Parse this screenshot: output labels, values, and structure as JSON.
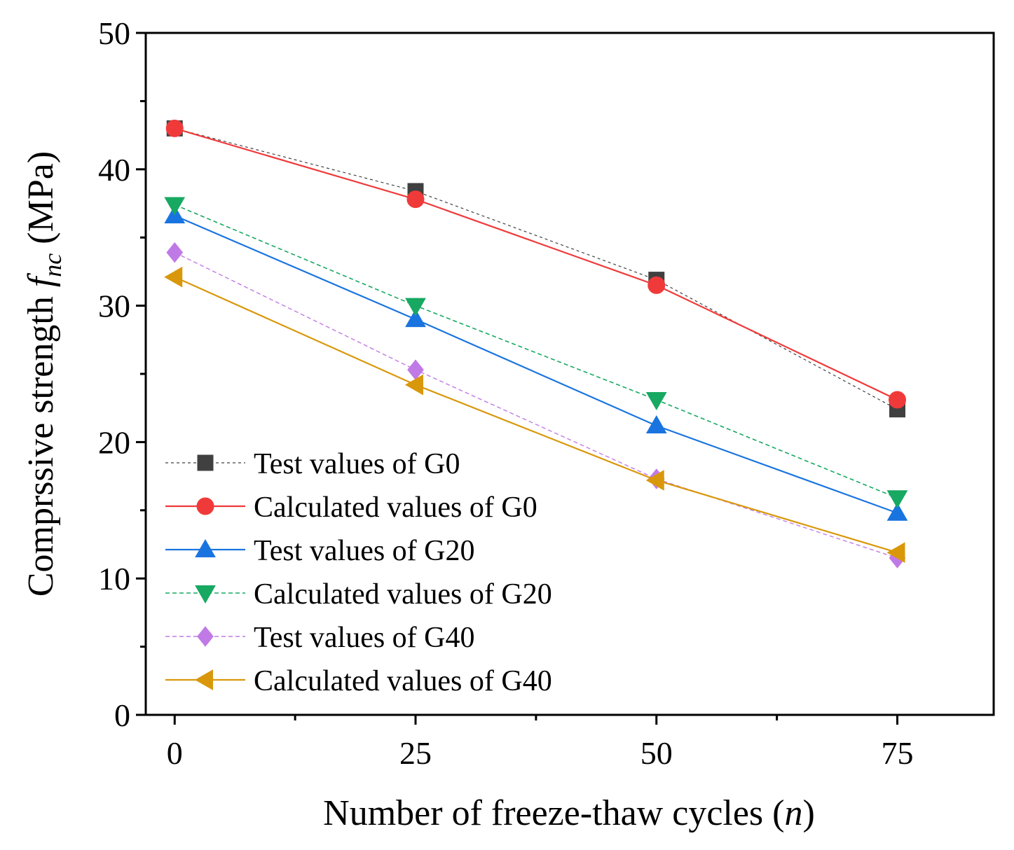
{
  "chart_data": {
    "type": "line",
    "x": [
      0,
      25,
      50,
      75
    ],
    "xlim": [
      -3,
      85
    ],
    "ylim": [
      0,
      50
    ],
    "xticks": [
      0,
      25,
      50,
      75
    ],
    "xminor": [
      12.5,
      37.5,
      62.5
    ],
    "yticks": [
      0,
      10,
      20,
      30,
      40,
      50
    ],
    "yminor": [
      5,
      15,
      25,
      35,
      45
    ],
    "xlabel": {
      "main": "Number of freeze-thaw cycles (",
      "italic": "n",
      "close": ")"
    },
    "ylabel": {
      "main": "Comprssive strength ",
      "f": "f",
      "sub": "nc",
      "unit": " (MPa)"
    },
    "grid": false,
    "legend_position": "lower-left",
    "series": [
      {
        "name": "Test values of G0",
        "values": [
          43.0,
          38.4,
          31.9,
          22.4
        ],
        "color": "#404040",
        "marker": "square",
        "dash": "dotted",
        "stroke": 1.2
      },
      {
        "name": "Calculated values of G0",
        "values": [
          43.0,
          37.8,
          31.5,
          23.1
        ],
        "color": "#f03a3a",
        "marker": "circle",
        "dash": "solid",
        "stroke": 2.2
      },
      {
        "name": "Test values of G20",
        "values": [
          36.6,
          29.0,
          21.2,
          14.8
        ],
        "color": "#1a74e0",
        "marker": "triangle-up",
        "dash": "solid",
        "stroke": 2.2
      },
      {
        "name": "Calculated values of G20",
        "values": [
          37.4,
          30.0,
          23.1,
          15.9
        ],
        "color": "#17a861",
        "marker": "triangle-down",
        "dash": "dashed",
        "stroke": 1.6
      },
      {
        "name": "Test values of G40",
        "values": [
          33.9,
          25.3,
          17.3,
          11.5
        ],
        "color": "#c07ae6",
        "marker": "diamond",
        "dash": "dashed",
        "stroke": 1.4
      },
      {
        "name": "Calculated values of G40",
        "values": [
          32.1,
          24.2,
          17.2,
          11.9
        ],
        "color": "#d9980b",
        "marker": "triangle-left",
        "dash": "solid",
        "stroke": 2.2
      }
    ]
  }
}
